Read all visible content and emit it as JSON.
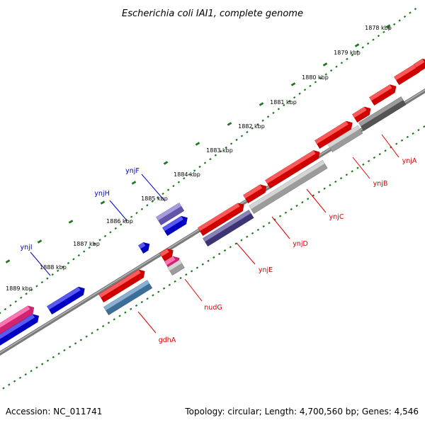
{
  "title": "Escherichia coli IAI1, complete genome",
  "footer": {
    "accession": "Accession: NC_011741",
    "summary": "Topology: circular; Length: 4,700,560 bp; Genes: 4,546"
  },
  "ruler_ticks": [
    "1878 kbp",
    "1879 kbp",
    "1880 kbp",
    "1881 kbp",
    "1882 kbp",
    "1883 kbp",
    "1884 kbp",
    "1885 kbp",
    "1886 kbp",
    "1887 kbp",
    "1888 kbp",
    "1889 kbp"
  ],
  "colors": {
    "backbone": "#7a7a7a",
    "ruler_dots": "#1f7a1f",
    "forward_red": "#ff0000",
    "blue": "#0000ee",
    "purple": "#7766cc",
    "pink": "#ff2b8a",
    "dark_purple": "#4a3f8f",
    "steel_blue": "#4a86b8",
    "gray": "#666666",
    "light_gray": "#bdbdbd",
    "label_red": "#dd0000",
    "label_blue": "#0000cc"
  },
  "genes": [
    {
      "name": "ynjA",
      "color": "red"
    },
    {
      "name": "ynjB",
      "color": "red"
    },
    {
      "name": "ynjC",
      "color": "red"
    },
    {
      "name": "ynjD",
      "color": "red"
    },
    {
      "name": "ynjE",
      "color": "red"
    },
    {
      "name": "nudG",
      "color": "red"
    },
    {
      "name": "gdhA",
      "color": "red"
    },
    {
      "name": "ynjF",
      "color": "blue"
    },
    {
      "name": "ynjH",
      "color": "blue"
    },
    {
      "name": "ynjI",
      "color": "blue"
    }
  ]
}
